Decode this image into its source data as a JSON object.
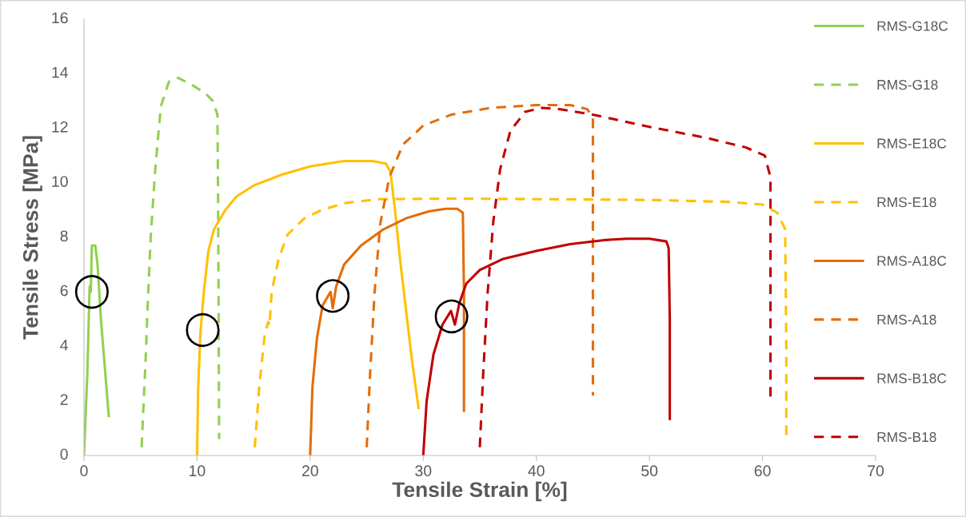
{
  "chart_data": {
    "type": "line",
    "xlabel": "Tensile Strain [%]",
    "ylabel": "Tensile Stress [MPa]",
    "xlim": [
      0,
      70
    ],
    "ylim": [
      0,
      16
    ],
    "xticks": [
      0,
      10,
      20,
      30,
      40,
      50,
      60,
      70
    ],
    "yticks": [
      0,
      2,
      4,
      6,
      8,
      10,
      12,
      14,
      16
    ],
    "grid": false,
    "legend": "right",
    "marker": "none",
    "series": [
      {
        "name": "RMS-G18C",
        "color": "#92d050",
        "line_style": "solid",
        "x": [
          0,
          0.3,
          0.5,
          0.6,
          0.7,
          1.0,
          1.2,
          1.5,
          2.2
        ],
        "values": [
          0,
          3,
          6.2,
          6,
          7.7,
          7.7,
          7,
          5,
          1.4
        ]
      },
      {
        "name": "RMS-G18",
        "color": "#92d050",
        "line_style": "dashed",
        "x": [
          5.1,
          5.5,
          5.6,
          5.9,
          6.3,
          6.8,
          7.5,
          8.3,
          9.5,
          10.7,
          11.4,
          11.8,
          11.85,
          11.9,
          11.95
        ],
        "values": [
          0.3,
          4,
          5.2,
          8,
          10.5,
          12.8,
          13.7,
          13.85,
          13.6,
          13.3,
          13,
          12.5,
          10,
          6,
          0.6
        ]
      },
      {
        "name": "RMS-E18C",
        "color": "#ffc000",
        "line_style": "solid",
        "x": [
          10,
          10.1,
          10.3,
          10.6,
          11,
          11.5,
          12.5,
          13.5,
          15,
          17.5,
          20,
          23,
          25.5,
          26.7,
          27.1,
          27.5,
          28,
          29,
          29.6
        ],
        "values": [
          0,
          2.5,
          4.5,
          6,
          7.5,
          8.3,
          9,
          9.5,
          9.9,
          10.3,
          10.6,
          10.8,
          10.8,
          10.7,
          10.4,
          9,
          7,
          3.5,
          1.7
        ]
      },
      {
        "name": "RMS-E18",
        "color": "#ffc000",
        "line_style": "dashed",
        "x": [
          15.1,
          15.5,
          16,
          16.3,
          16.4,
          16.6,
          17.2,
          18,
          19.5,
          21,
          23,
          26,
          33,
          40,
          50,
          57,
          60,
          61.3,
          62,
          62.1,
          62.1
        ],
        "values": [
          0.3,
          2.5,
          4.5,
          4.9,
          4.75,
          6,
          7.2,
          8.1,
          8.7,
          9.0,
          9.25,
          9.4,
          9.42,
          9.4,
          9.37,
          9.3,
          9.2,
          8.9,
          8.3,
          4,
          0.75
        ]
      },
      {
        "name": "RMS-A18C",
        "color": "#e46c0a",
        "line_style": "solid",
        "x": [
          20,
          20.2,
          20.6,
          21.1,
          21.8,
          22.0,
          22.3,
          23,
          24.5,
          26.5,
          28.5,
          30.5,
          32,
          33,
          33.5,
          33.6,
          33.6
        ],
        "values": [
          0,
          2.5,
          4.3,
          5.5,
          6.0,
          5.4,
          6.2,
          7,
          7.7,
          8.3,
          8.7,
          8.95,
          9.05,
          9.05,
          8.9,
          6,
          1.6
        ]
      },
      {
        "name": "RMS-A18",
        "color": "#e46c0a",
        "line_style": "dashed",
        "x": [
          25,
          25.3,
          25.7,
          26.2,
          27,
          28.2,
          30,
          32.5,
          36,
          40,
          43,
          44.5,
          45,
          45,
          45
        ],
        "values": [
          0.3,
          3,
          6,
          8.5,
          10.2,
          11.4,
          12.1,
          12.5,
          12.75,
          12.85,
          12.85,
          12.7,
          12.4,
          7,
          2.2
        ]
      },
      {
        "name": "RMS-B18C",
        "color": "#c00000",
        "line_style": "solid",
        "x": [
          30,
          30.3,
          30.9,
          31.7,
          32.45,
          32.8,
          33.2,
          33.8,
          35,
          37,
          40,
          43,
          46,
          48,
          50,
          51.5,
          51.7,
          51.8,
          51.8
        ],
        "values": [
          0,
          2,
          3.7,
          4.8,
          5.3,
          4.8,
          5.6,
          6.3,
          6.8,
          7.2,
          7.5,
          7.75,
          7.9,
          7.95,
          7.95,
          7.85,
          7.6,
          5,
          1.3
        ]
      },
      {
        "name": "RMS-B18",
        "color": "#c00000",
        "line_style": "dashed",
        "x": [
          35,
          35.3,
          35.7,
          36.2,
          36.8,
          37.7,
          39,
          40.5,
          42,
          45,
          50,
          55,
          58.5,
          60.2,
          60.7,
          60.7,
          60.7
        ],
        "values": [
          0.3,
          3,
          6,
          8.6,
          10.5,
          11.9,
          12.6,
          12.75,
          12.7,
          12.5,
          12.05,
          11.65,
          11.3,
          11,
          10.2,
          6,
          1.9
        ]
      }
    ],
    "annotations": [
      {
        "text": "◯",
        "x": 0.7,
        "y": 6.0
      },
      {
        "text": "◯",
        "x": 10.5,
        "y": 4.6
      },
      {
        "text": "◯",
        "x": 22,
        "y": 5.85
      },
      {
        "text": "◯",
        "x": 32.5,
        "y": 5.1
      }
    ]
  }
}
